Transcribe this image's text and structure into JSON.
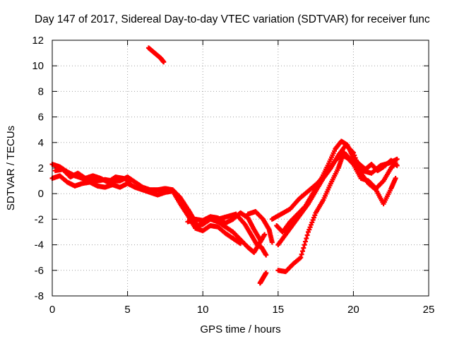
{
  "chart_data": {
    "type": "scatter",
    "title": "Day 147 of 2017, Sidereal Day-to-day VTEC variation (SDTVAR) for receiver func",
    "xlabel": "GPS time / hours",
    "ylabel": "SDTVAR / TECUs",
    "xlim": [
      0,
      25
    ],
    "ylim": [
      -8,
      12
    ],
    "x_ticks": [
      0,
      5,
      10,
      15,
      20,
      25
    ],
    "y_ticks": [
      -8,
      -6,
      -4,
      -2,
      0,
      2,
      4,
      6,
      8,
      10,
      12
    ],
    "grid": true,
    "marker": "+",
    "series": [
      {
        "name": "SDTVAR",
        "color": "#ff0000",
        "tracks": [
          {
            "x": [
              0,
              0.5,
              1,
              1.5,
              2,
              2.5,
              3,
              3.5,
              4,
              4.5,
              5,
              5.5,
              6,
              6.5,
              7,
              7.5,
              8,
              8.5,
              9,
              9.3,
              9.6,
              10,
              10.5,
              11,
              11.5,
              12
            ],
            "y": [
              2.3,
              2.1,
              1.7,
              1.4,
              1.2,
              1.1,
              1.0,
              1.1,
              1.0,
              1.0,
              1.3,
              0.9,
              0.5,
              0.3,
              0.3,
              0.4,
              0.3,
              -0.3,
              -1.2,
              -1.8,
              -2.5,
              -2.4,
              -2.0,
              -2.2,
              -2.6,
              -3.0
            ]
          },
          {
            "x": [
              0,
              0.5,
              1,
              1.5,
              2,
              2.5,
              3,
              3.5,
              4,
              4.5,
              5,
              5.5,
              6,
              6.5,
              7,
              7.5,
              8,
              8.5,
              9,
              9.5,
              10,
              10.5,
              11,
              11.5,
              12,
              12.5
            ],
            "y": [
              1.2,
              1.4,
              0.9,
              0.6,
              0.8,
              0.9,
              0.6,
              0.5,
              0.7,
              0.5,
              0.8,
              0.5,
              0.3,
              0.1,
              -0.1,
              0.1,
              0.2,
              -0.8,
              -1.7,
              -2.7,
              -2.9,
              -2.5,
              -2.6,
              -3.1,
              -3.5,
              -3.9
            ]
          },
          {
            "x": [
              0.2,
              0.7,
              1.2,
              1.7,
              2.2,
              2.7,
              3.2,
              3.7,
              4.2,
              4.7,
              5.2
            ],
            "y": [
              1.8,
              1.9,
              1.3,
              1.6,
              1.2,
              1.4,
              1.2,
              0.9,
              1.3,
              1.2,
              1.0
            ]
          },
          {
            "x": [
              6.4,
              6.8,
              7.2,
              7.4
            ],
            "y": [
              11.4,
              11.0,
              10.6,
              10.3
            ]
          },
          {
            "x": [
              9.0,
              9.5,
              10.0,
              10.5,
              11.0,
              11.5,
              12.0,
              12.5,
              13.0,
              13.4,
              13.8
            ],
            "y": [
              -2.2,
              -2.0,
              -2.1,
              -1.8,
              -1.9,
              -2.3,
              -2.0,
              -1.5,
              -1.9,
              -2.8,
              -3.6
            ]
          },
          {
            "x": [
              11.0,
              11.6,
              12.2,
              12.8,
              13.2,
              13.6,
              13.9,
              14.2
            ],
            "y": [
              -2.0,
              -1.8,
              -1.6,
              -2.4,
              -3.2,
              -4.0,
              -4.2,
              -4.8
            ]
          },
          {
            "x": [
              12.0,
              12.5,
              13.0,
              13.4,
              13.8,
              14.1
            ],
            "y": [
              -3.0,
              -3.6,
              -4.2,
              -4.6,
              -3.8,
              -3.2
            ]
          },
          {
            "x": [
              13.0,
              13.5,
              14.0,
              14.4,
              14.6
            ],
            "y": [
              -1.6,
              -1.4,
              -2.0,
              -2.8,
              -3.8
            ]
          },
          {
            "x": [
              13.8,
              14.0,
              14.2
            ],
            "y": [
              -7.0,
              -6.6,
              -6.2
            ]
          },
          {
            "x": [
              15.0,
              15.5,
              16.0,
              16.5,
              17.0,
              17.5,
              18.0,
              18.5,
              19.0,
              19.3,
              19.6,
              20.0,
              20.5,
              21.0,
              21.5,
              22.0,
              22.5,
              22.8
            ],
            "y": [
              -6.0,
              -6.1,
              -5.5,
              -5.0,
              -3.0,
              -1.5,
              -0.5,
              0.8,
              2.0,
              3.0,
              2.8,
              2.3,
              1.2,
              1.0,
              0.4,
              1.0,
              2.0,
              2.4
            ]
          },
          {
            "x": [
              14.9,
              15.3,
              15.8,
              16.3,
              16.8,
              17.3,
              17.8,
              18.3,
              18.8,
              19.2,
              19.6,
              20.0,
              20.4,
              20.8,
              21.2,
              21.6,
              22.0,
              22.5,
              22.9
            ],
            "y": [
              -2.5,
              -3.0,
              -2.2,
              -1.6,
              -1.0,
              0.0,
              1.0,
              2.2,
              3.5,
              4.1,
              3.8,
              2.8,
              2.3,
              1.9,
              2.3,
              1.8,
              2.1,
              2.6,
              2.2
            ]
          },
          {
            "x": [
              15.0,
              15.5,
              16.0,
              16.5,
              17.0,
              17.5,
              18.0,
              18.5,
              19.0,
              19.5,
              20.0,
              20.5,
              21.0,
              21.5,
              22.0,
              22.5,
              22.8
            ],
            "y": [
              -4.0,
              -3.2,
              -2.4,
              -1.6,
              -0.8,
              0.2,
              1.2,
              2.0,
              3.0,
              3.8,
              3.2,
              1.6,
              0.8,
              0.3,
              -0.8,
              0.4,
              1.2
            ]
          },
          {
            "x": [
              14.6,
              15.2,
              15.8,
              16.4,
              17.0,
              17.6,
              18.2,
              18.8,
              19.4,
              20.0,
              20.6,
              21.2,
              21.8,
              22.4,
              22.9
            ],
            "y": [
              -2.0,
              -1.6,
              -1.2,
              -0.4,
              0.2,
              0.8,
              1.6,
              2.6,
              3.2,
              2.4,
              1.8,
              1.6,
              2.2,
              2.4,
              2.7
            ]
          }
        ]
      }
    ]
  }
}
